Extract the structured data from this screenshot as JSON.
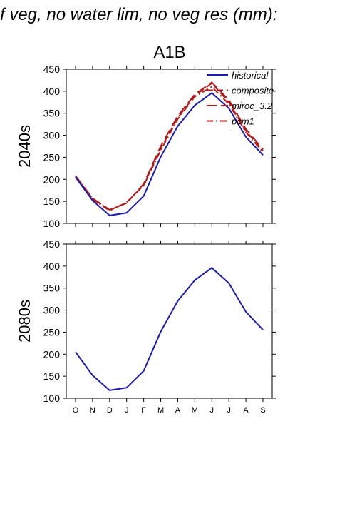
{
  "header": {
    "title_fragment": "f veg, no water lim, no veg res (mm):",
    "scenario": "A1B"
  },
  "legend_entries": [
    "historical",
    "composite",
    "miroc_3.2",
    "pcm1"
  ],
  "colors": {
    "historical": "#1a1ab4",
    "scenario": "#b41a1a",
    "axis": "#000000"
  },
  "chart_data": [
    {
      "type": "line",
      "row_label": "2040s",
      "categories": [
        "O",
        "N",
        "D",
        "J",
        "F",
        "M",
        "A",
        "M",
        "J",
        "J",
        "A",
        "S"
      ],
      "ylim": [
        100,
        450
      ],
      "yticks": [
        100,
        150,
        200,
        250,
        300,
        350,
        400,
        450
      ],
      "legend": "top-right",
      "grid": false,
      "series": [
        {
          "name": "historical",
          "style": "solid",
          "color": "#1a1ab4",
          "values": [
            205,
            152,
            118,
            124,
            162,
            251,
            321,
            368,
            396,
            361,
            296,
            255
          ]
        },
        {
          "name": "composite",
          "style": "dash",
          "color": "#b41a1a",
          "values": [
            207,
            156,
            130,
            147,
            187,
            270,
            340,
            390,
            418,
            375,
            310,
            265
          ]
        },
        {
          "name": "miroc_3.2",
          "style": "longdash",
          "color": "#b41a1a",
          "values": [
            208,
            157,
            131,
            146,
            190,
            275,
            344,
            393,
            420,
            380,
            314,
            268
          ]
        },
        {
          "name": "pcm1",
          "style": "dashdot",
          "color": "#b41a1a",
          "values": [
            206,
            155,
            129,
            148,
            186,
            266,
            337,
            388,
            410,
            371,
            307,
            262
          ]
        }
      ]
    },
    {
      "type": "line",
      "row_label": "2080s",
      "categories": [
        "O",
        "N",
        "D",
        "J",
        "F",
        "M",
        "A",
        "M",
        "J",
        "J",
        "A",
        "S"
      ],
      "ylim": [
        100,
        450
      ],
      "yticks": [
        100,
        150,
        200,
        250,
        300,
        350,
        400,
        450
      ],
      "grid": false,
      "series": [
        {
          "name": "historical",
          "style": "solid",
          "color": "#1a1ab4",
          "values": [
            205,
            152,
            118,
            124,
            162,
            251,
            321,
            368,
            396,
            361,
            296,
            255
          ]
        }
      ]
    }
  ]
}
